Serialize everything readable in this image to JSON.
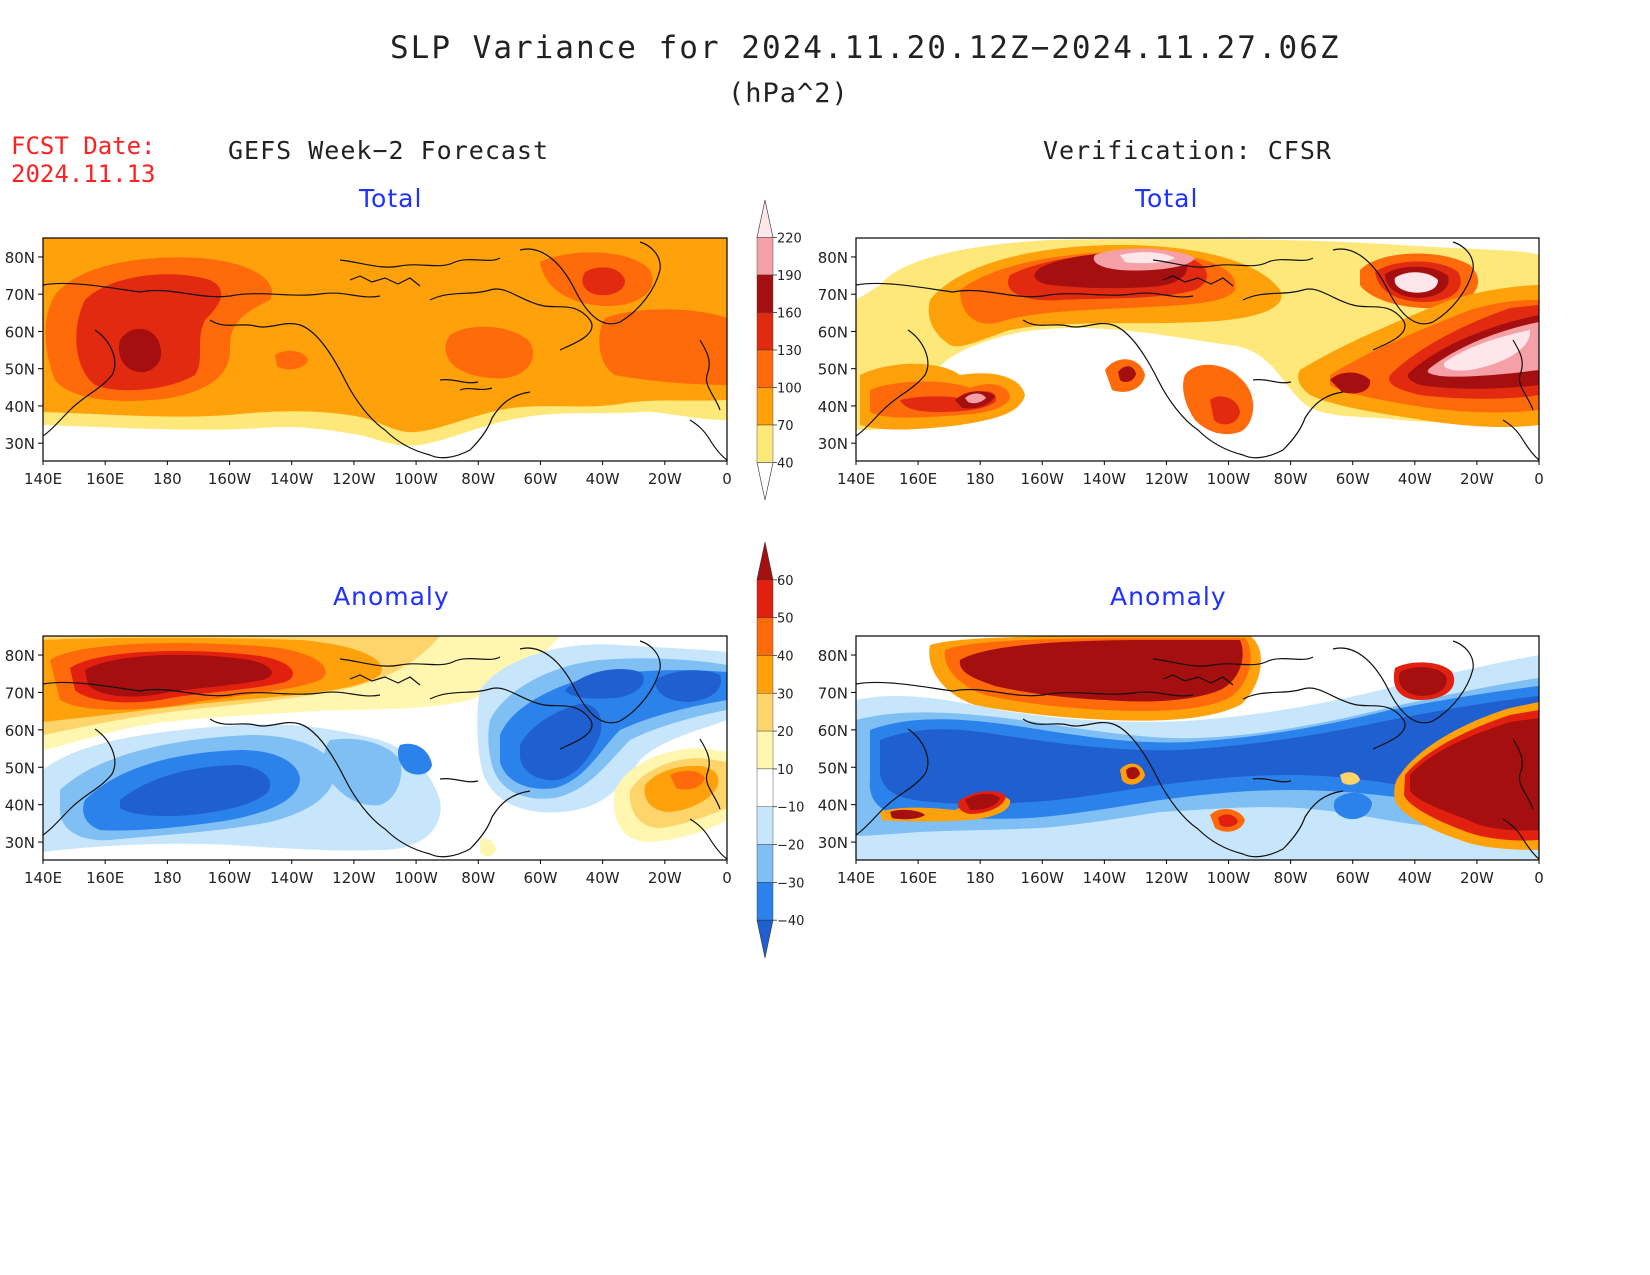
{
  "title": "SLP Variance for 2024.11.20.12Z−2024.11.27.06Z",
  "subtitle": "(hPa^2)",
  "forecast_date_label": "FCST Date:",
  "forecast_date_value": "2024.11.13",
  "columns": {
    "left": "GEFS Week−2 Forecast",
    "right": "Verification: CFSR"
  },
  "panels": {
    "total_label": "Total",
    "anomaly_label": "Anomaly"
  },
  "map_axes": {
    "lat_labels": [
      "80N",
      "70N",
      "60N",
      "50N",
      "40N",
      "30N"
    ],
    "lon_labels": [
      "140E",
      "160E",
      "180",
      "160W",
      "140W",
      "120W",
      "100W",
      "80W",
      "60W",
      "40W",
      "20W",
      "0"
    ]
  },
  "colorbars": {
    "total": {
      "levels": [
        "40",
        "70",
        "100",
        "130",
        "160",
        "190",
        "220"
      ],
      "colors": [
        "#ffffff",
        "#ffe87a",
        "#ffa10a",
        "#ff6a0a",
        "#e22a10",
        "#a50f0f",
        "#f4a0a6",
        "#ffe6ea"
      ]
    },
    "anomaly": {
      "levels": [
        "-40",
        "-30",
        "-20",
        "-10",
        "10",
        "20",
        "30",
        "40",
        "50",
        "60"
      ],
      "display_levels": [
        "−40",
        "−30",
        "−20",
        "−10",
        "10",
        "20",
        "30",
        "40",
        "50",
        "60"
      ],
      "colors": [
        "#1f5fd0",
        "#2a82ea",
        "#7fbff4",
        "#c8e6fb",
        "#ffffff",
        "#fff6b0",
        "#ffd46a",
        "#ffa10a",
        "#ff6a0a",
        "#e2200f",
        "#a50f0f"
      ]
    }
  },
  "colors": {
    "title_text": "#222222",
    "forecast_text": "#ff2020",
    "panel_text": "#2030ff",
    "coast": "#111111"
  }
}
